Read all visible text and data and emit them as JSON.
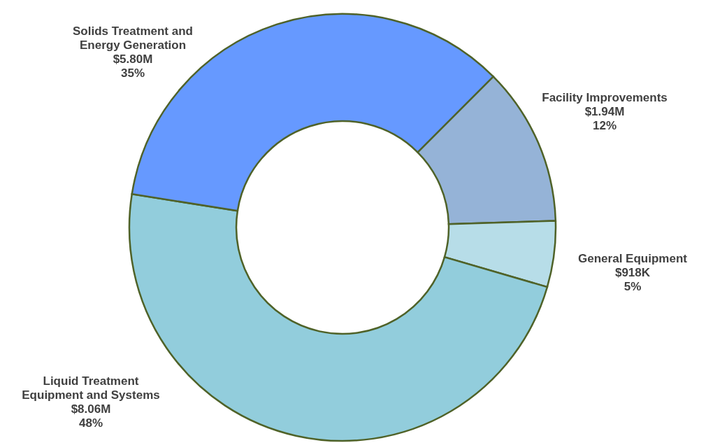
{
  "chart_data": {
    "type": "donut",
    "categories": [
      "Facility Improvements",
      "General Equipment",
      "Liquid Treatment\nEquipment and Systems",
      "Solids Treatment and\nEnergy Generation"
    ],
    "values": [
      12,
      5,
      48,
      35
    ],
    "value_labels": [
      "$1.94M\n12%",
      "$918K\n5%",
      "$8.06M\n48%",
      "$5.80M\n35%"
    ],
    "colors": [
      "#95b3d7",
      "#b7dde8",
      "#92cddc",
      "#6699ff"
    ]
  }
}
